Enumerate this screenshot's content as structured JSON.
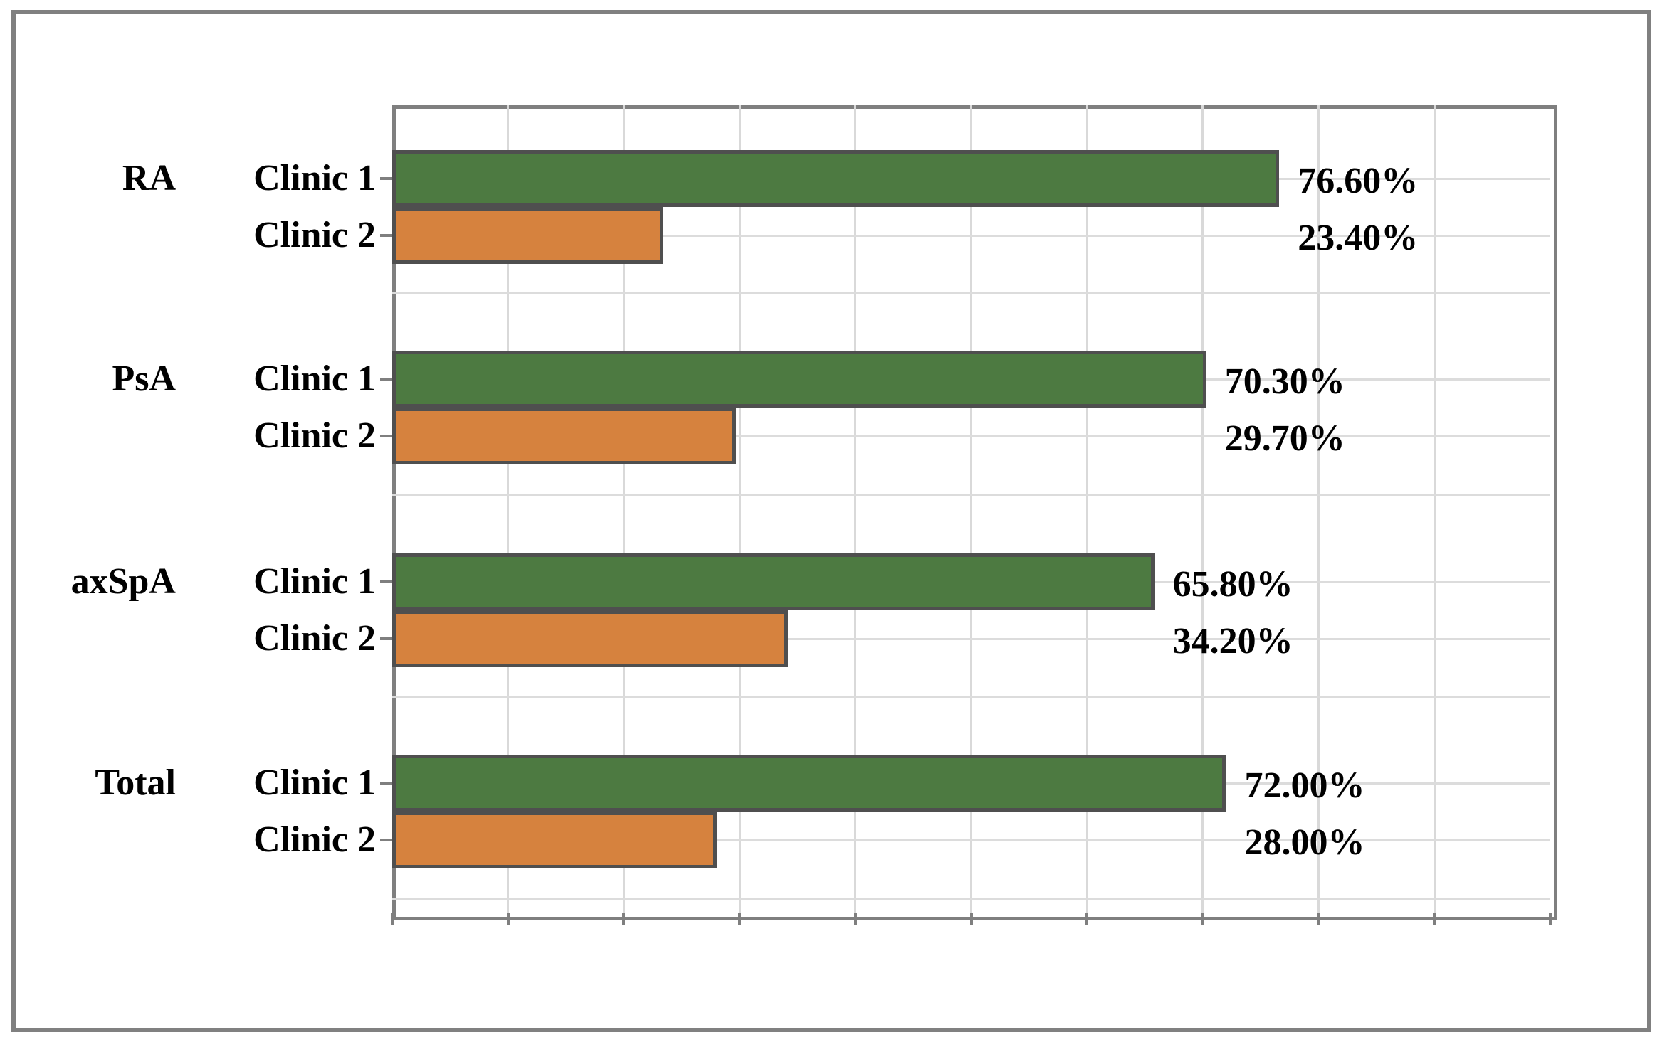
{
  "chart_data": {
    "type": "bar",
    "orientation": "horizontal",
    "title": "",
    "categories": [
      "RA",
      "PsA",
      "axSpA",
      "Total"
    ],
    "series_names": [
      "Clinic 1",
      "Clinic 2"
    ],
    "groups": [
      {
        "category": "RA",
        "bars": [
          {
            "series": "Clinic 1",
            "value": 76.6,
            "label": "76.60%"
          },
          {
            "series": "Clinic 2",
            "value": 23.4,
            "label": "23.40%"
          }
        ]
      },
      {
        "category": "PsA",
        "bars": [
          {
            "series": "Clinic 1",
            "value": 70.3,
            "label": "70.30%"
          },
          {
            "series": "Clinic 2",
            "value": 29.7,
            "label": "29.70%"
          }
        ]
      },
      {
        "category": "axSpA",
        "bars": [
          {
            "series": "Clinic 1",
            "value": 65.8,
            "label": "65.80%"
          },
          {
            "series": "Clinic 2",
            "value": 34.2,
            "label": "34.20%"
          }
        ]
      },
      {
        "category": "Total",
        "bars": [
          {
            "series": "Clinic 1",
            "value": 72.0,
            "label": "72.00%"
          },
          {
            "series": "Clinic 2",
            "value": 28.0,
            "label": "28.00%"
          }
        ]
      }
    ],
    "xlim": [
      0,
      100
    ],
    "x_gridline_step_pct": 10,
    "x_tick_labels_visible": false,
    "y_tick_labels": [
      "Clinic 1",
      "Clinic 2"
    ],
    "legend": "none",
    "grid": "on",
    "colors": {
      "clinic1_fill": "#4D7A41",
      "clinic2_fill": "#D6823E",
      "bar_border": "#4F4F4F",
      "axis_border": "#7F7F7F",
      "gridline": "#D9D9D9",
      "label_text": "#000000",
      "outer_frame": "#808080"
    }
  }
}
